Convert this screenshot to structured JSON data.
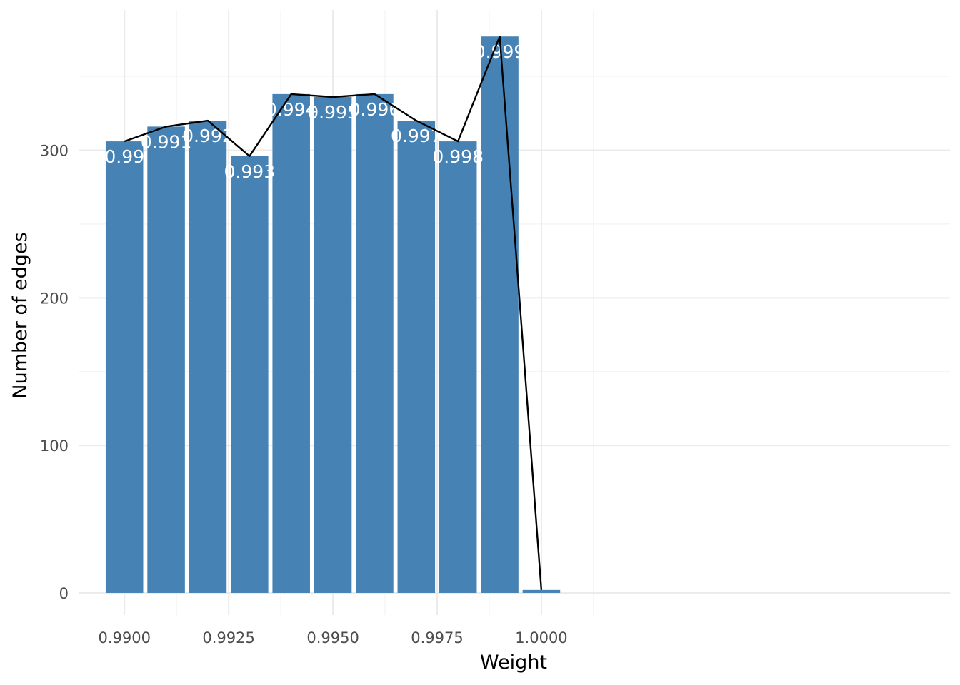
{
  "chart_data": {
    "type": "bar",
    "title": "",
    "xlabel": "Weight",
    "ylabel": "Number of edges",
    "x": [
      0.99,
      0.991,
      0.992,
      0.993,
      0.994,
      0.995,
      0.996,
      0.997,
      0.998,
      0.999,
      1.0
    ],
    "values": [
      306,
      316,
      320,
      296,
      338,
      336,
      338,
      320,
      306,
      377,
      2
    ],
    "bar_labels": [
      "0.99",
      "0.991",
      "0.992",
      "0.993",
      "0.994",
      "0.995",
      "0.996",
      "0.997",
      "0.998",
      "0.999",
      ""
    ],
    "line_overlay": true,
    "xlim": [
      0.9889,
      1.0098
    ],
    "ylim": [
      -15,
      395
    ],
    "x_ticks": [
      0.99,
      0.9925,
      0.995,
      0.9975,
      1.0
    ],
    "x_tick_labels": [
      "0.9900",
      "0.9925",
      "0.9950",
      "0.9975",
      "1.0000"
    ],
    "y_ticks": [
      0,
      100,
      200,
      300
    ],
    "y_tick_labels": [
      "0",
      "100",
      "200",
      "300"
    ],
    "grid": true,
    "legend": "none",
    "colors": {
      "bar": "#4682b4",
      "line": "#000000",
      "label": "#ffffff"
    }
  }
}
